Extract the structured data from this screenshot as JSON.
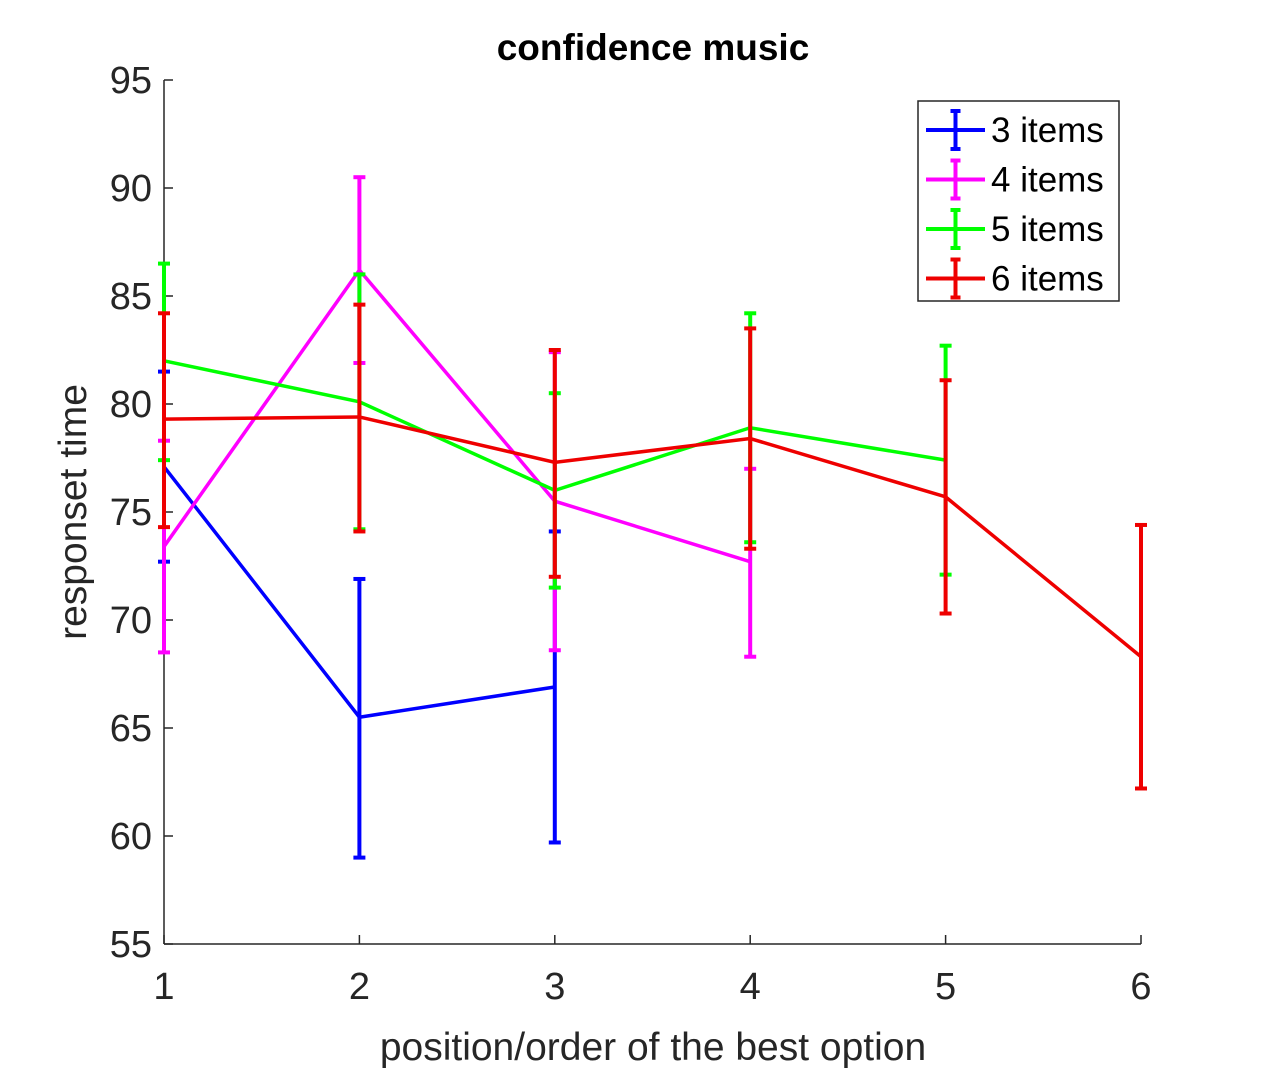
{
  "chart_data": {
    "type": "line",
    "title": "confidence music",
    "xlabel": "position/order of the best option",
    "ylabel": "responset time",
    "xlim": [
      1,
      6
    ],
    "ylim": [
      55,
      95
    ],
    "xticks": [
      1,
      2,
      3,
      4,
      5,
      6
    ],
    "yticks": [
      55,
      60,
      65,
      70,
      75,
      80,
      85,
      90,
      95
    ],
    "grid": false,
    "legend_position": "top-right",
    "error_bars": true,
    "series": [
      {
        "name": "3 items",
        "color": "#0000ff",
        "x": [
          1,
          2,
          3
        ],
        "y": [
          77.1,
          65.5,
          66.9
        ],
        "err_low": [
          72.7,
          59.0,
          59.7
        ],
        "err_high": [
          81.5,
          71.9,
          74.1
        ]
      },
      {
        "name": "4 items",
        "color": "#ff00ff",
        "x": [
          1,
          2,
          3,
          4
        ],
        "y": [
          73.4,
          86.2,
          75.5,
          72.7
        ],
        "err_low": [
          68.5,
          81.9,
          68.6,
          68.3
        ],
        "err_high": [
          78.3,
          90.5,
          82.4,
          77.0
        ]
      },
      {
        "name": "5 items",
        "color": "#00ff00",
        "x": [
          1,
          2,
          3,
          4,
          5
        ],
        "y": [
          82.0,
          80.1,
          76.0,
          78.9,
          77.4
        ],
        "err_low": [
          77.4,
          74.2,
          71.5,
          73.6,
          72.1
        ],
        "err_high": [
          86.5,
          86.0,
          80.5,
          84.2,
          82.7
        ]
      },
      {
        "name": "6 items",
        "color": "#ee0000",
        "x": [
          1,
          2,
          3,
          4,
          5,
          6
        ],
        "y": [
          79.3,
          79.4,
          77.3,
          78.4,
          75.7,
          68.3
        ],
        "err_low": [
          74.3,
          74.1,
          72.0,
          73.3,
          70.3,
          62.2
        ],
        "err_high": [
          84.2,
          84.6,
          82.5,
          83.5,
          81.1,
          74.4
        ]
      }
    ]
  }
}
